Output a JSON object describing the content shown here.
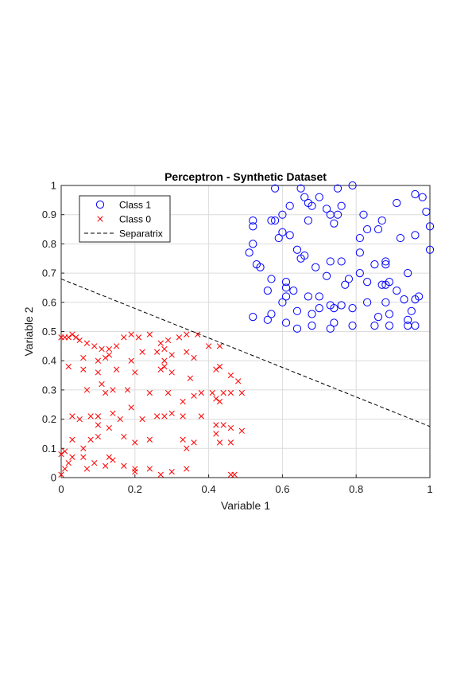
{
  "chart_data": {
    "type": "scatter",
    "title": "Perceptron - Synthetic Dataset",
    "xlabel": "Variable 1",
    "ylabel": "Variable 2",
    "xlim": [
      0,
      1
    ],
    "ylim": [
      0,
      1
    ],
    "xticks": [
      "0",
      "0.2",
      "0.4",
      "0.6",
      "0.8",
      "1"
    ],
    "yticks": [
      "0",
      "0.1",
      "0.2",
      "0.3",
      "0.4",
      "0.5",
      "0.6",
      "0.7",
      "0.8",
      "0.9",
      "1"
    ],
    "grid": true,
    "legend_position": "top-left",
    "series": [
      {
        "name": "Class 1",
        "marker": "circle",
        "color": "#0000ff",
        "points": [
          [
            0.58,
            0.99
          ],
          [
            0.65,
            0.99
          ],
          [
            0.75,
            0.99
          ],
          [
            0.79,
            1.0
          ],
          [
            0.66,
            0.96
          ],
          [
            0.7,
            0.96
          ],
          [
            0.67,
            0.94
          ],
          [
            0.68,
            0.93
          ],
          [
            0.72,
            0.92
          ],
          [
            0.76,
            0.93
          ],
          [
            0.62,
            0.93
          ],
          [
            0.6,
            0.9
          ],
          [
            0.73,
            0.9
          ],
          [
            0.75,
            0.9
          ],
          [
            0.82,
            0.9
          ],
          [
            0.87,
            0.88
          ],
          [
            0.58,
            0.88
          ],
          [
            0.52,
            0.88
          ],
          [
            0.57,
            0.88
          ],
          [
            0.67,
            0.88
          ],
          [
            0.74,
            0.87
          ],
          [
            0.91,
            0.94
          ],
          [
            0.96,
            0.97
          ],
          [
            0.98,
            0.96
          ],
          [
            0.99,
            0.91
          ],
          [
            0.96,
            0.83
          ],
          [
            1.0,
            0.86
          ],
          [
            0.92,
            0.82
          ],
          [
            0.83,
            0.85
          ],
          [
            0.86,
            0.85
          ],
          [
            0.81,
            0.82
          ],
          [
            0.52,
            0.86
          ],
          [
            0.6,
            0.84
          ],
          [
            0.62,
            0.83
          ],
          [
            0.59,
            0.82
          ],
          [
            0.52,
            0.8
          ],
          [
            0.51,
            0.77
          ],
          [
            0.64,
            0.78
          ],
          [
            0.66,
            0.76
          ],
          [
            0.65,
            0.75
          ],
          [
            0.69,
            0.72
          ],
          [
            0.73,
            0.74
          ],
          [
            0.76,
            0.74
          ],
          [
            0.81,
            0.77
          ],
          [
            0.85,
            0.73
          ],
          [
            0.88,
            0.73
          ],
          [
            0.88,
            0.74
          ],
          [
            0.53,
            0.73
          ],
          [
            0.54,
            0.72
          ],
          [
            0.57,
            0.68
          ],
          [
            0.56,
            0.64
          ],
          [
            0.61,
            0.67
          ],
          [
            0.61,
            0.65
          ],
          [
            0.63,
            0.64
          ],
          [
            0.67,
            0.62
          ],
          [
            0.7,
            0.62
          ],
          [
            0.72,
            0.69
          ],
          [
            0.77,
            0.66
          ],
          [
            0.78,
            0.68
          ],
          [
            0.81,
            0.7
          ],
          [
            0.83,
            0.67
          ],
          [
            0.87,
            0.66
          ],
          [
            0.88,
            0.66
          ],
          [
            0.89,
            0.67
          ],
          [
            0.94,
            0.7
          ],
          [
            0.97,
            0.62
          ],
          [
            0.96,
            0.61
          ],
          [
            0.91,
            0.64
          ],
          [
            0.88,
            0.6
          ],
          [
            0.95,
            0.57
          ],
          [
            1.0,
            0.78
          ],
          [
            0.57,
            0.56
          ],
          [
            0.6,
            0.6
          ],
          [
            0.61,
            0.62
          ],
          [
            0.64,
            0.57
          ],
          [
            0.68,
            0.56
          ],
          [
            0.73,
            0.59
          ],
          [
            0.74,
            0.58
          ],
          [
            0.76,
            0.59
          ],
          [
            0.79,
            0.58
          ],
          [
            0.83,
            0.6
          ],
          [
            0.86,
            0.55
          ],
          [
            0.89,
            0.56
          ],
          [
            0.94,
            0.54
          ],
          [
            0.96,
            0.52
          ],
          [
            0.94,
            0.52
          ],
          [
            0.89,
            0.52
          ],
          [
            0.85,
            0.52
          ],
          [
            0.79,
            0.52
          ],
          [
            0.74,
            0.53
          ],
          [
            0.73,
            0.51
          ],
          [
            0.68,
            0.52
          ],
          [
            0.64,
            0.51
          ],
          [
            0.61,
            0.53
          ],
          [
            0.56,
            0.54
          ],
          [
            0.52,
            0.55
          ],
          [
            0.7,
            0.58
          ],
          [
            0.93,
            0.61
          ]
        ]
      },
      {
        "name": "Class 0",
        "marker": "cross",
        "color": "#ff0000",
        "points": [
          [
            0.0,
            0.48
          ],
          [
            0.01,
            0.48
          ],
          [
            0.02,
            0.48
          ],
          [
            0.03,
            0.49
          ],
          [
            0.04,
            0.48
          ],
          [
            0.05,
            0.47
          ],
          [
            0.07,
            0.46
          ],
          [
            0.09,
            0.45
          ],
          [
            0.11,
            0.44
          ],
          [
            0.13,
            0.44
          ],
          [
            0.15,
            0.45
          ],
          [
            0.17,
            0.48
          ],
          [
            0.19,
            0.49
          ],
          [
            0.21,
            0.48
          ],
          [
            0.24,
            0.49
          ],
          [
            0.27,
            0.46
          ],
          [
            0.28,
            0.44
          ],
          [
            0.29,
            0.47
          ],
          [
            0.32,
            0.48
          ],
          [
            0.34,
            0.49
          ],
          [
            0.37,
            0.49
          ],
          [
            0.4,
            0.45
          ],
          [
            0.43,
            0.45
          ],
          [
            0.06,
            0.41
          ],
          [
            0.1,
            0.4
          ],
          [
            0.12,
            0.41
          ],
          [
            0.13,
            0.42
          ],
          [
            0.19,
            0.4
          ],
          [
            0.22,
            0.43
          ],
          [
            0.26,
            0.43
          ],
          [
            0.28,
            0.4
          ],
          [
            0.3,
            0.42
          ],
          [
            0.34,
            0.43
          ],
          [
            0.36,
            0.41
          ],
          [
            0.02,
            0.38
          ],
          [
            0.06,
            0.37
          ],
          [
            0.1,
            0.36
          ],
          [
            0.15,
            0.37
          ],
          [
            0.2,
            0.36
          ],
          [
            0.27,
            0.37
          ],
          [
            0.28,
            0.38
          ],
          [
            0.3,
            0.36
          ],
          [
            0.35,
            0.34
          ],
          [
            0.42,
            0.37
          ],
          [
            0.43,
            0.38
          ],
          [
            0.46,
            0.35
          ],
          [
            0.48,
            0.33
          ],
          [
            0.11,
            0.32
          ],
          [
            0.07,
            0.3
          ],
          [
            0.12,
            0.29
          ],
          [
            0.14,
            0.3
          ],
          [
            0.18,
            0.3
          ],
          [
            0.24,
            0.29
          ],
          [
            0.29,
            0.29
          ],
          [
            0.33,
            0.26
          ],
          [
            0.36,
            0.28
          ],
          [
            0.38,
            0.29
          ],
          [
            0.41,
            0.29
          ],
          [
            0.42,
            0.27
          ],
          [
            0.44,
            0.29
          ],
          [
            0.46,
            0.29
          ],
          [
            0.49,
            0.29
          ],
          [
            0.43,
            0.26
          ],
          [
            0.19,
            0.24
          ],
          [
            0.22,
            0.2
          ],
          [
            0.26,
            0.21
          ],
          [
            0.28,
            0.21
          ],
          [
            0.3,
            0.22
          ],
          [
            0.33,
            0.21
          ],
          [
            0.38,
            0.21
          ],
          [
            0.03,
            0.21
          ],
          [
            0.05,
            0.2
          ],
          [
            0.08,
            0.21
          ],
          [
            0.1,
            0.21
          ],
          [
            0.14,
            0.22
          ],
          [
            0.16,
            0.2
          ],
          [
            0.42,
            0.18
          ],
          [
            0.44,
            0.18
          ],
          [
            0.46,
            0.17
          ],
          [
            0.49,
            0.16
          ],
          [
            0.42,
            0.15
          ],
          [
            0.1,
            0.18
          ],
          [
            0.13,
            0.17
          ],
          [
            0.03,
            0.13
          ],
          [
            0.08,
            0.13
          ],
          [
            0.1,
            0.14
          ],
          [
            0.17,
            0.14
          ],
          [
            0.2,
            0.12
          ],
          [
            0.24,
            0.13
          ],
          [
            0.33,
            0.13
          ],
          [
            0.36,
            0.12
          ],
          [
            0.43,
            0.12
          ],
          [
            0.46,
            0.12
          ],
          [
            0.34,
            0.1
          ],
          [
            0.06,
            0.1
          ],
          [
            0.01,
            0.09
          ],
          [
            0.0,
            0.08
          ],
          [
            0.03,
            0.07
          ],
          [
            0.06,
            0.07
          ],
          [
            0.13,
            0.07
          ],
          [
            0.14,
            0.06
          ],
          [
            0.02,
            0.05
          ],
          [
            0.09,
            0.05
          ],
          [
            0.12,
            0.04
          ],
          [
            0.17,
            0.04
          ],
          [
            0.01,
            0.03
          ],
          [
            0.07,
            0.03
          ],
          [
            0.2,
            0.03
          ],
          [
            0.24,
            0.03
          ],
          [
            0.3,
            0.02
          ],
          [
            0.2,
            0.02
          ],
          [
            0.27,
            0.01
          ],
          [
            0.46,
            0.01
          ],
          [
            0.47,
            0.01
          ],
          [
            0.0,
            0.01
          ],
          [
            0.34,
            0.03
          ]
        ]
      },
      {
        "name": "Separatrix",
        "marker": "line",
        "color": "#000000",
        "line_style": "dashed",
        "points": [
          [
            0,
            0.68
          ],
          [
            1,
            0.175
          ]
        ]
      }
    ]
  }
}
